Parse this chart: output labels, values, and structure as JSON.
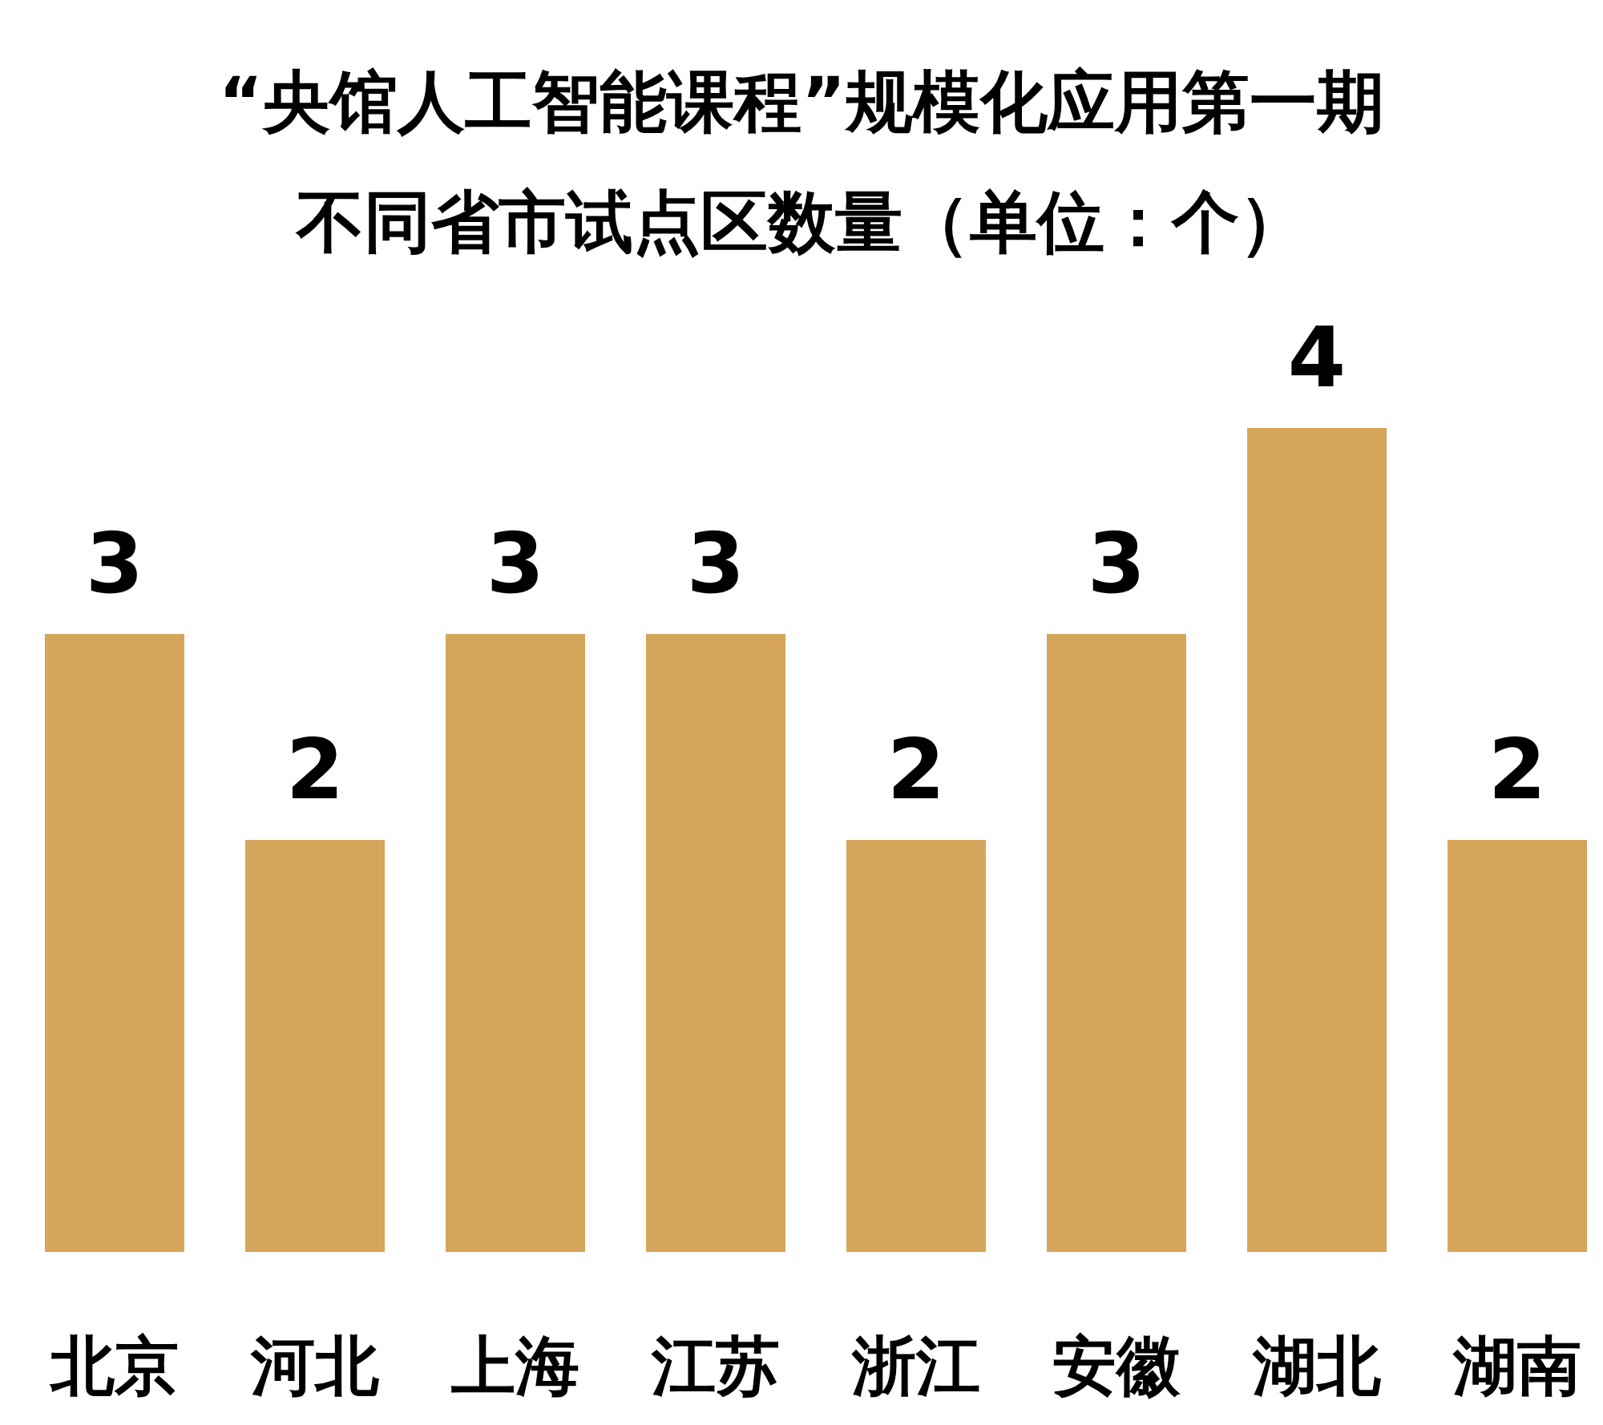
{
  "chart_data": {
    "type": "bar",
    "title": "“央馆人工智能课程”规模化应用第一期",
    "subtitle": "不同省市试点区数量（单位：个）",
    "categories": [
      "北京",
      "河北",
      "上海",
      "江苏",
      "浙江",
      "安徽",
      "湖北",
      "湖南"
    ],
    "values": [
      3,
      2,
      3,
      3,
      2,
      3,
      4,
      2
    ],
    "color": "#d4a55a",
    "data_labels": true
  }
}
